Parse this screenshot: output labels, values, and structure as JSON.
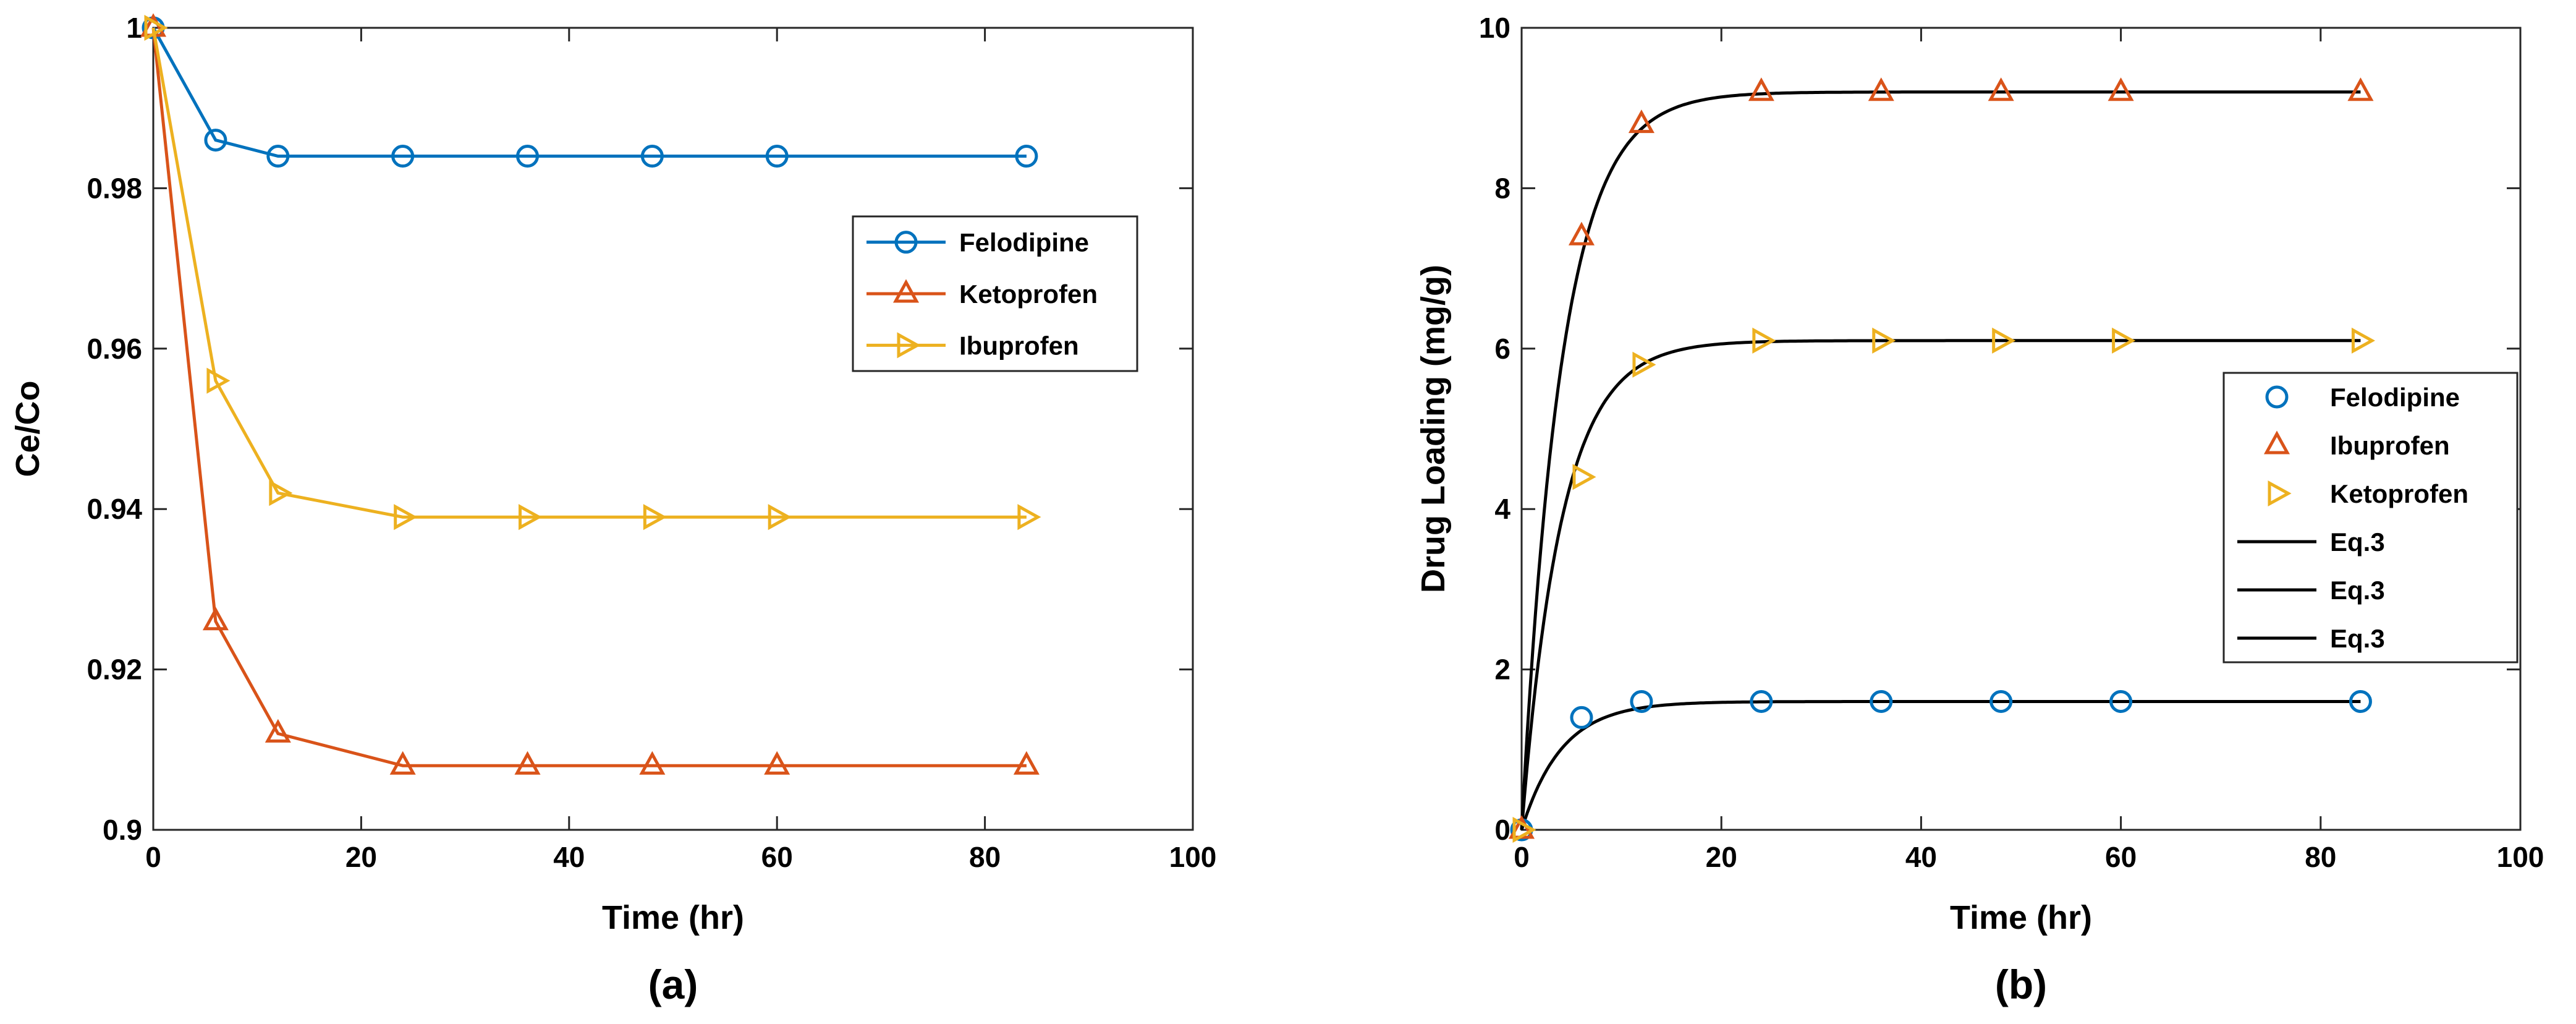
{
  "chart_data": [
    {
      "type": "line",
      "panel_label": "(a)",
      "xlabel": "Time (hr)",
      "ylabel": "Ce/Co",
      "xlim": [
        0,
        100
      ],
      "ylim": [
        0.9,
        1.0
      ],
      "xticks": [
        0,
        20,
        40,
        60,
        80,
        100
      ],
      "yticks": [
        0.9,
        0.92,
        0.94,
        0.96,
        0.98,
        1.0
      ],
      "xtick_labels": [
        "0",
        "20",
        "40",
        "60",
        "80",
        "100"
      ],
      "ytick_labels": [
        "0.9",
        "0.92",
        "0.94",
        "0.96",
        "0.98",
        "1"
      ],
      "grid": false,
      "legend_position": "center-right",
      "series": [
        {
          "name": "Felodipine",
          "marker": "circle",
          "color": "#0072BD",
          "x": [
            0,
            6,
            12,
            24,
            36,
            48,
            60,
            84
          ],
          "y": [
            1.0,
            0.986,
            0.984,
            0.984,
            0.984,
            0.984,
            0.984,
            0.984
          ]
        },
        {
          "name": "Ketoprofen",
          "marker": "triangle-up",
          "color": "#D95319",
          "x": [
            0,
            6,
            12,
            24,
            36,
            48,
            60,
            84
          ],
          "y": [
            1.0,
            0.926,
            0.912,
            0.908,
            0.908,
            0.908,
            0.908,
            0.908
          ]
        },
        {
          "name": "Ibuprofen",
          "marker": "triangle-right",
          "color": "#EDB120",
          "x": [
            0,
            6,
            12,
            24,
            36,
            48,
            60,
            84
          ],
          "y": [
            1.0,
            0.956,
            0.942,
            0.939,
            0.939,
            0.939,
            0.939,
            0.939
          ]
        }
      ]
    },
    {
      "type": "scatter",
      "panel_label": "(b)",
      "xlabel": "Time (hr)",
      "ylabel": "Drug Loading (mg/g)",
      "xlim": [
        0,
        100
      ],
      "ylim": [
        0,
        10
      ],
      "xticks": [
        0,
        20,
        40,
        60,
        80,
        100
      ],
      "yticks": [
        0,
        2,
        4,
        6,
        8,
        10
      ],
      "xtick_labels": [
        "0",
        "20",
        "40",
        "60",
        "80",
        "100"
      ],
      "ytick_labels": [
        "0",
        "2",
        "4",
        "6",
        "8",
        "10"
      ],
      "grid": false,
      "legend_position": "right",
      "series": [
        {
          "name": "Felodipine",
          "marker": "circle",
          "color": "#0072BD",
          "x": [
            0,
            6,
            12,
            24,
            36,
            48,
            60,
            84
          ],
          "y": [
            0,
            1.4,
            1.6,
            1.6,
            1.6,
            1.6,
            1.6,
            1.6
          ]
        },
        {
          "name": "Ibuprofen",
          "marker": "triangle-up",
          "color": "#D95319",
          "x": [
            0,
            6,
            12,
            24,
            36,
            48,
            60,
            84
          ],
          "y": [
            0,
            7.4,
            8.8,
            9.2,
            9.2,
            9.2,
            9.2,
            9.2
          ]
        },
        {
          "name": "Ketoprofen",
          "marker": "triangle-right",
          "color": "#EDB120",
          "x": [
            0,
            6,
            12,
            24,
            36,
            48,
            60,
            84
          ],
          "y": [
            0,
            4.4,
            5.8,
            6.1,
            6.1,
            6.1,
            6.1,
            6.1
          ]
        }
      ],
      "fit_curves": [
        {
          "name": "Eq.3",
          "color": "#000000",
          "qe": 1.6,
          "k": 0.25,
          "x_max": 84
        },
        {
          "name": "Eq.3",
          "color": "#000000",
          "qe": 9.2,
          "k": 0.25,
          "x_max": 84
        },
        {
          "name": "Eq.3",
          "color": "#000000",
          "qe": 6.1,
          "k": 0.25,
          "x_max": 84
        }
      ]
    }
  ]
}
